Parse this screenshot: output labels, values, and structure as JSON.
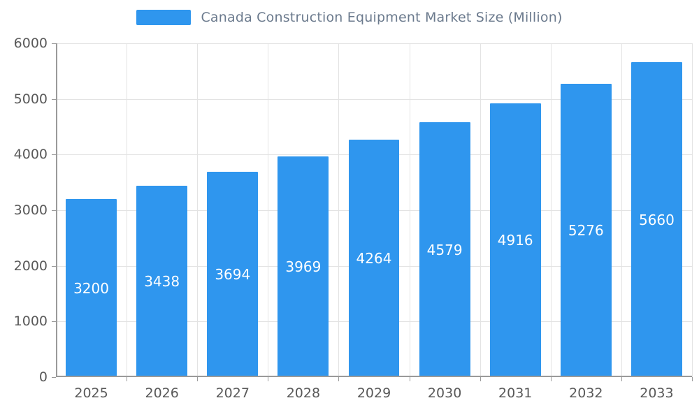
{
  "chart_data": {
    "type": "bar",
    "title": "Canada Construction Equipment Market Size (Million)",
    "categories": [
      "2025",
      "2026",
      "2027",
      "2028",
      "2029",
      "2030",
      "2031",
      "2032",
      "2033"
    ],
    "values": [
      3200,
      3438,
      3694,
      3969,
      4264,
      4579,
      4916,
      5276,
      5660
    ],
    "xlabel": "",
    "ylabel": "",
    "ylim": [
      0,
      6000
    ],
    "ytick_step": 1000,
    "grid": true,
    "legend_position": "top-center",
    "bar_color": "#2f96ee",
    "value_label_color": "#ffffff",
    "tick_label_color": "#595959",
    "title_color": "#6b7a8d"
  }
}
